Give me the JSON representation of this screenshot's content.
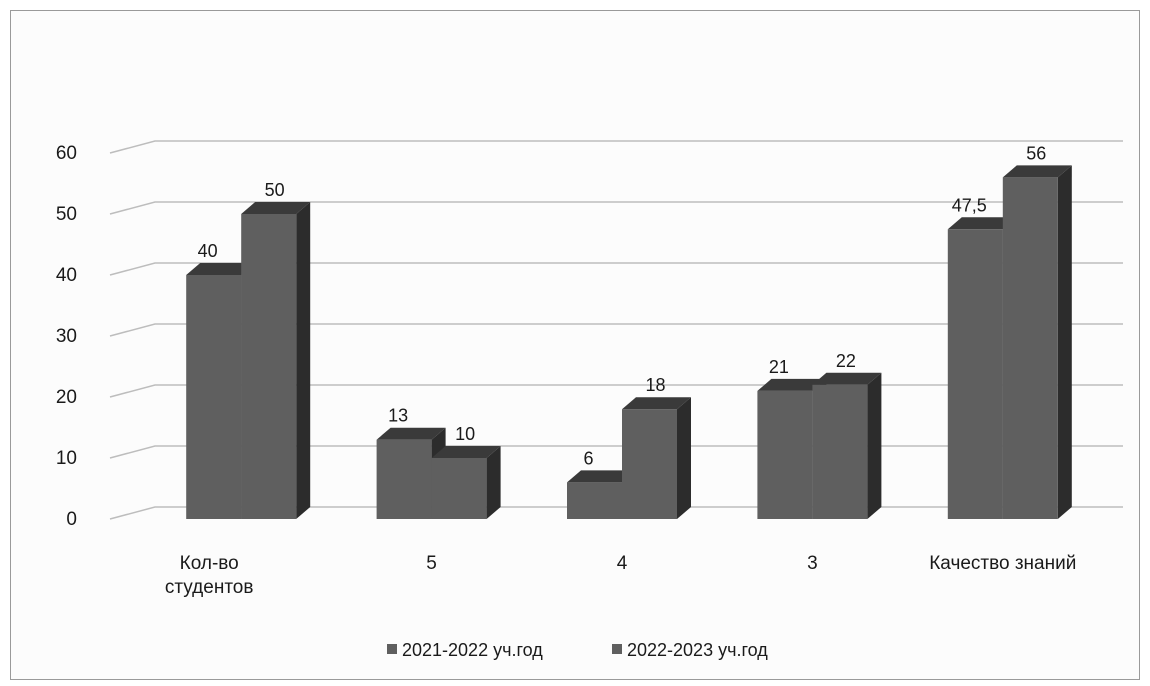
{
  "chart_data": {
    "type": "bar",
    "title": "",
    "xlabel": "",
    "ylabel": "",
    "categories": [
      [
        "Кол-во",
        "студентов"
      ],
      [
        "5"
      ],
      [
        "4"
      ],
      [
        "3"
      ],
      [
        "Качество знаний"
      ]
    ],
    "series": [
      {
        "name": "2021-2022 уч.год",
        "values": [
          40,
          13,
          6,
          21,
          47.5
        ],
        "labels": [
          "40",
          "13",
          "6",
          "21",
          "47,5"
        ]
      },
      {
        "name": "2022-2023 уч.год",
        "values": [
          50,
          10,
          18,
          22,
          56
        ],
        "labels": [
          "50",
          "10",
          "18",
          "22",
          "56"
        ]
      }
    ],
    "yticks": [
      0,
      10,
      20,
      30,
      40,
      50,
      60
    ],
    "ylim": [
      0,
      60
    ],
    "grid": true,
    "legend_position": "bottom",
    "bar_style": "3d",
    "colors": {
      "front": "#5f5f5f",
      "top": "#3a3a3a",
      "side": "#2c2c2c",
      "grid": "#bdbdbd"
    }
  }
}
